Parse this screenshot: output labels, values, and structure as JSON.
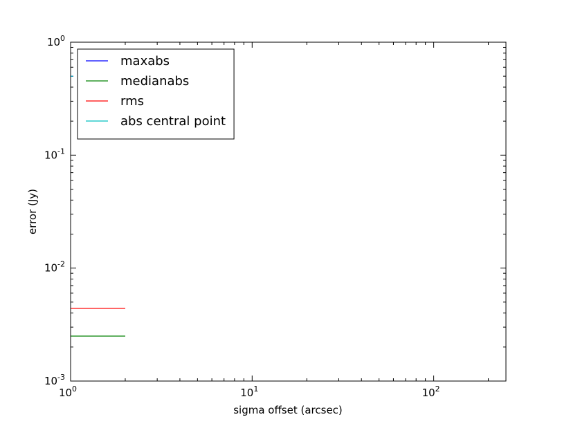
{
  "chart_data": {
    "type": "line",
    "title": "",
    "xlabel": "sigma offset (arcsec)",
    "ylabel": "error (Jy)",
    "xscale": "log",
    "yscale": "log",
    "xlim": [
      1,
      250
    ],
    "ylim": [
      0.001,
      1
    ],
    "x_ticks": [
      {
        "value": 1,
        "base": "10",
        "exp": "0"
      },
      {
        "value": 10,
        "base": "10",
        "exp": "1"
      },
      {
        "value": 100,
        "base": "10",
        "exp": "2"
      }
    ],
    "y_ticks": [
      {
        "value": 0.001,
        "base": "10",
        "exp": "-3"
      },
      {
        "value": 0.01,
        "base": "10",
        "exp": "-2"
      },
      {
        "value": 0.1,
        "base": "10",
        "exp": "-1"
      },
      {
        "value": 1,
        "base": "10",
        "exp": "0"
      }
    ],
    "grid": false,
    "legend_position": "top-left",
    "series": [
      {
        "name": "maxabs",
        "color": "#0000ff",
        "x": [
          1,
          1.03
        ],
        "y": [
          0.5,
          0.5
        ]
      },
      {
        "name": "medianabs",
        "color": "#008000",
        "x": [
          1,
          2
        ],
        "y": [
          0.0025,
          0.0025
        ]
      },
      {
        "name": "rms",
        "color": "#ff0000",
        "x": [
          1,
          2
        ],
        "y": [
          0.0044,
          0.0044
        ]
      },
      {
        "name": "abs central point",
        "color": "#00bfbf",
        "x": [
          1,
          1.03
        ],
        "y": [
          0.5,
          0.5
        ]
      }
    ]
  }
}
